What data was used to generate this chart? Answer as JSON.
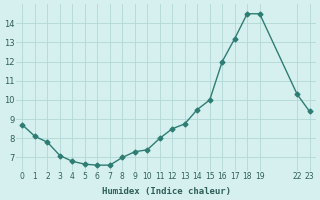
{
  "x": [
    0,
    1,
    2,
    3,
    4,
    5,
    6,
    7,
    8,
    9,
    10,
    11,
    12,
    13,
    14,
    15,
    16,
    17,
    18,
    19,
    22,
    23
  ],
  "y": [
    8.7,
    8.1,
    7.8,
    7.1,
    6.8,
    6.65,
    6.6,
    6.6,
    7.0,
    7.3,
    7.4,
    8.0,
    8.5,
    8.75,
    9.5,
    10.0,
    12.0,
    13.2,
    14.5,
    14.5,
    10.3,
    9.4
  ],
  "line_color": "#2e7d74",
  "marker_color": "#2e7d74",
  "bg_color": "#d6f0ef",
  "grid_color": "#b0d8d5",
  "axis_label_color": "#2e5f5a",
  "xlabel": "Humidex (Indice chaleur)",
  "xtick_positions": [
    0,
    1,
    2,
    3,
    4,
    5,
    6,
    7,
    8,
    9,
    10,
    11,
    12,
    13,
    14,
    15,
    16,
    17,
    18,
    19,
    22,
    23
  ],
  "xtick_labels": [
    "0",
    "1",
    "2",
    "3",
    "4",
    "5",
    "6",
    "7",
    "8",
    "9",
    "10",
    "11",
    "12",
    "13",
    "14",
    "15",
    "16",
    "17",
    "18",
    "19",
    "22",
    "23"
  ],
  "yticks": [
    7,
    8,
    9,
    10,
    11,
    12,
    13,
    14
  ],
  "ylim": [
    6.3,
    15.0
  ],
  "xlim": [
    -0.5,
    23.5
  ]
}
